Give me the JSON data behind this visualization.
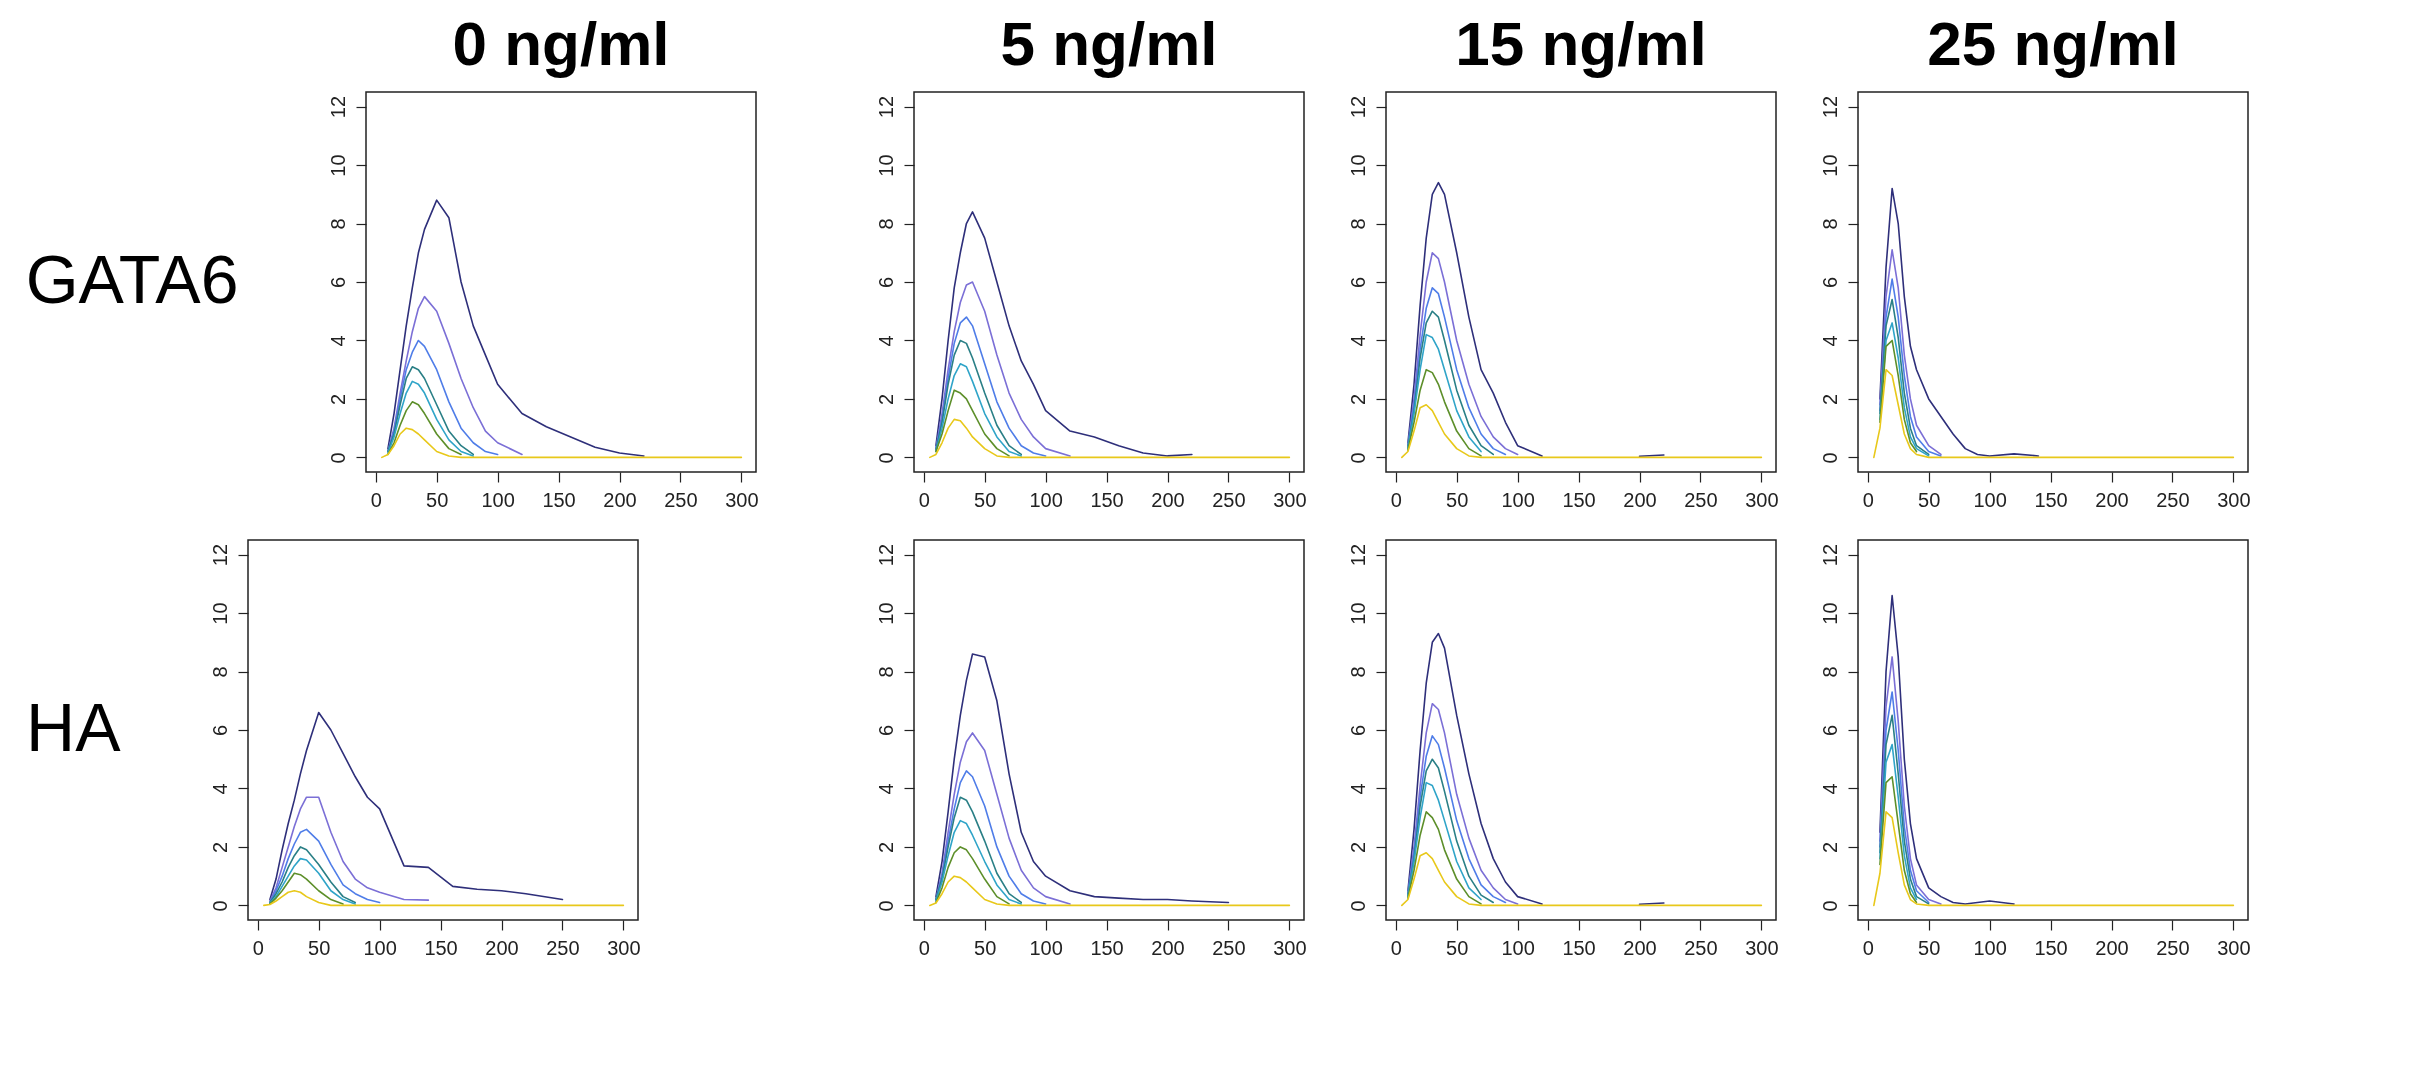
{
  "chart_data": [
    {
      "type": "line",
      "title": "0 ng/ml",
      "ylabel": "GATA6",
      "xlim": [
        -8,
        312
      ],
      "ylim": [
        -0.5,
        12.5
      ],
      "xticks": [
        0,
        50,
        100,
        150,
        200,
        250,
        300
      ],
      "yticks": [
        0,
        2,
        4,
        6,
        8,
        10,
        12
      ],
      "x": [
        5,
        10,
        15,
        20,
        25,
        30,
        35,
        40,
        50,
        60,
        70,
        80,
        90,
        100,
        120,
        140,
        160,
        180,
        200,
        220,
        250,
        300
      ],
      "series": [
        {
          "color": "#2e2f7a",
          "values": [
            null,
            0.3,
            1.5,
            3,
            4.5,
            5.8,
            7,
            7.8,
            8.8,
            8.2,
            6,
            4.5,
            3.5,
            2.5,
            1.5,
            1.05,
            0.7,
            0.35,
            0.15,
            0.05,
            null,
            null
          ]
        },
        {
          "color": "#7b6fd6",
          "values": [
            null,
            0.2,
            1,
            2.2,
            3.3,
            4.3,
            5.1,
            5.5,
            5,
            3.9,
            2.7,
            1.7,
            0.9,
            0.5,
            0.1,
            null,
            null,
            null,
            null,
            null,
            null,
            null
          ]
        },
        {
          "color": "#4f7de8",
          "values": [
            null,
            0.2,
            0.9,
            2,
            3,
            3.6,
            4,
            3.8,
            3,
            1.9,
            1,
            0.5,
            0.2,
            0.1,
            null,
            null,
            null,
            null,
            null,
            null,
            null,
            null
          ]
        },
        {
          "color": "#2a7f86",
          "values": [
            null,
            0.2,
            0.8,
            1.8,
            2.7,
            3.1,
            3,
            2.7,
            1.8,
            0.9,
            0.4,
            0.1,
            null,
            null,
            null,
            null,
            null,
            null,
            null,
            null,
            null,
            null
          ]
        },
        {
          "color": "#2fa4c8",
          "values": [
            null,
            0.15,
            0.7,
            1.5,
            2.2,
            2.6,
            2.5,
            2.2,
            1.3,
            0.6,
            0.2,
            0.05,
            null,
            null,
            null,
            null,
            null,
            null,
            null,
            null,
            null,
            null
          ]
        },
        {
          "color": "#5d8f2a",
          "values": [
            null,
            0.1,
            0.5,
            1.1,
            1.6,
            1.9,
            1.8,
            1.5,
            0.8,
            0.3,
            0.1,
            null,
            null,
            null,
            null,
            null,
            null,
            null,
            null,
            null,
            null,
            null
          ]
        },
        {
          "color": "#e8c81a",
          "values": [
            0,
            0.1,
            0.4,
            0.8,
            1,
            0.95,
            0.8,
            0.6,
            0.2,
            0.05,
            0,
            0,
            0,
            0,
            0,
            0,
            0,
            0,
            0,
            0,
            0,
            0
          ]
        }
      ]
    },
    {
      "type": "line",
      "title": "5 ng/ml",
      "xlim": [
        -8,
        312
      ],
      "ylim": [
        -0.5,
        12.5
      ],
      "xticks": [
        0,
        50,
        100,
        150,
        200,
        250,
        300
      ],
      "yticks": [
        0,
        2,
        4,
        6,
        8,
        10,
        12
      ],
      "x": [
        5,
        10,
        15,
        20,
        25,
        30,
        35,
        40,
        50,
        60,
        70,
        80,
        90,
        100,
        120,
        140,
        160,
        180,
        200,
        220,
        250,
        300
      ],
      "series": [
        {
          "color": "#2e2f7a",
          "values": [
            null,
            0.4,
            2,
            4,
            5.8,
            7,
            8,
            8.4,
            7.5,
            6,
            4.5,
            3.3,
            2.5,
            1.6,
            0.9,
            0.7,
            0.4,
            0.15,
            0.05,
            0.1,
            null,
            null
          ]
        },
        {
          "color": "#7b6fd6",
          "values": [
            null,
            0.3,
            1.5,
            3,
            4.3,
            5.3,
            5.9,
            6,
            5,
            3.5,
            2.2,
            1.3,
            0.7,
            0.3,
            0.05,
            null,
            null,
            null,
            null,
            null,
            null,
            null
          ]
        },
        {
          "color": "#4f7de8",
          "values": [
            null,
            0.3,
            1.3,
            2.7,
            3.9,
            4.6,
            4.8,
            4.5,
            3.2,
            1.9,
            1,
            0.4,
            0.15,
            0.05,
            null,
            null,
            null,
            null,
            null,
            null,
            null,
            null
          ]
        },
        {
          "color": "#2a7f86",
          "values": [
            null,
            0.25,
            1.2,
            2.5,
            3.5,
            4,
            3.9,
            3.4,
            2.2,
            1.1,
            0.4,
            0.1,
            null,
            null,
            null,
            null,
            null,
            null,
            null,
            null,
            null,
            null
          ]
        },
        {
          "color": "#2fa4c8",
          "values": [
            null,
            0.2,
            1,
            2,
            2.8,
            3.2,
            3.1,
            2.6,
            1.5,
            0.7,
            0.2,
            0.05,
            null,
            null,
            null,
            null,
            null,
            null,
            null,
            null,
            null,
            null
          ]
        },
        {
          "color": "#5d8f2a",
          "values": [
            null,
            0.2,
            0.8,
            1.6,
            2.3,
            2.2,
            2,
            1.6,
            0.8,
            0.3,
            0.05,
            null,
            null,
            null,
            null,
            null,
            null,
            null,
            null,
            null,
            null,
            null
          ]
        },
        {
          "color": "#e8c81a",
          "values": [
            0,
            0.1,
            0.5,
            1,
            1.3,
            1.25,
            1,
            0.7,
            0.3,
            0.05,
            0,
            0,
            0,
            0,
            0,
            0,
            0,
            0,
            0,
            0,
            0,
            0
          ]
        }
      ]
    },
    {
      "type": "line",
      "title": "15 ng/ml",
      "xlim": [
        -8,
        312
      ],
      "ylim": [
        -0.5,
        12.5
      ],
      "xticks": [
        0,
        50,
        100,
        150,
        200,
        250,
        300
      ],
      "yticks": [
        0,
        2,
        4,
        6,
        8,
        10,
        12
      ],
      "x": [
        5,
        10,
        15,
        20,
        25,
        30,
        35,
        40,
        50,
        60,
        70,
        80,
        90,
        100,
        120,
        140,
        160,
        180,
        200,
        220,
        250,
        300
      ],
      "series": [
        {
          "color": "#2e2f7a",
          "values": [
            null,
            0.5,
            2.5,
            5.2,
            7.5,
            9,
            9.4,
            9,
            7,
            4.8,
            3,
            2.2,
            1.2,
            0.4,
            0.05,
            null,
            null,
            null,
            0.04,
            0.08,
            null,
            null
          ]
        },
        {
          "color": "#7b6fd6",
          "values": [
            null,
            0.4,
            2,
            4.2,
            6,
            7,
            6.8,
            6,
            4,
            2.5,
            1.4,
            0.7,
            0.3,
            0.1,
            null,
            null,
            null,
            null,
            null,
            null,
            null,
            null
          ]
        },
        {
          "color": "#4f7de8",
          "values": [
            null,
            0.4,
            1.8,
            3.7,
            5.1,
            5.8,
            5.6,
            4.8,
            3,
            1.7,
            0.8,
            0.3,
            0.1,
            null,
            null,
            null,
            null,
            null,
            null,
            null,
            null,
            null
          ]
        },
        {
          "color": "#2a7f86",
          "values": [
            null,
            0.35,
            1.6,
            3.4,
            4.6,
            5,
            4.8,
            4,
            2.3,
            1.1,
            0.4,
            0.1,
            null,
            null,
            null,
            null,
            null,
            null,
            null,
            null,
            null,
            null
          ]
        },
        {
          "color": "#2fa4c8",
          "values": [
            null,
            0.3,
            1.5,
            3,
            4.2,
            4.1,
            3.7,
            3,
            1.6,
            0.7,
            0.2,
            null,
            null,
            null,
            null,
            null,
            null,
            null,
            null,
            null,
            null,
            null
          ]
        },
        {
          "color": "#5d8f2a",
          "values": [
            null,
            0.25,
            1.2,
            2.3,
            3,
            2.9,
            2.5,
            1.9,
            0.9,
            0.3,
            0.05,
            null,
            null,
            null,
            null,
            null,
            null,
            null,
            null,
            null,
            null,
            null
          ]
        },
        {
          "color": "#e8c81a",
          "values": [
            0,
            0.2,
            0.9,
            1.7,
            1.8,
            1.6,
            1.2,
            0.8,
            0.3,
            0.05,
            0,
            0,
            0,
            0,
            0,
            0,
            0,
            0,
            0,
            0,
            0,
            0
          ]
        }
      ]
    },
    {
      "type": "line",
      "title": "25 ng/ml",
      "xlim": [
        -8,
        312
      ],
      "ylim": [
        -0.5,
        12.5
      ],
      "xticks": [
        0,
        50,
        100,
        150,
        200,
        250,
        300
      ],
      "yticks": [
        0,
        2,
        4,
        6,
        8,
        10,
        12
      ],
      "x": [
        5,
        10,
        15,
        20,
        25,
        30,
        35,
        40,
        50,
        60,
        70,
        80,
        90,
        100,
        120,
        140,
        160,
        180,
        200,
        220,
        250,
        300
      ],
      "series": [
        {
          "color": "#2e2f7a",
          "values": [
            null,
            2,
            6.5,
            9.2,
            8,
            5.5,
            3.8,
            3,
            2,
            1.4,
            0.8,
            0.3,
            0.1,
            0.05,
            0.12,
            0.05,
            null,
            null,
            null,
            null,
            null,
            null
          ]
        },
        {
          "color": "#7b6fd6",
          "values": [
            null,
            1.8,
            5.5,
            7.1,
            5.8,
            3.5,
            2,
            1.1,
            0.4,
            0.1,
            null,
            null,
            null,
            null,
            null,
            null,
            null,
            null,
            null,
            null,
            null,
            null
          ]
        },
        {
          "color": "#4f7de8",
          "values": [
            null,
            1.6,
            4.8,
            6.1,
            4.8,
            2.8,
            1.4,
            0.7,
            0.2,
            0.05,
            null,
            null,
            null,
            null,
            null,
            null,
            null,
            null,
            null,
            null,
            null,
            null
          ]
        },
        {
          "color": "#2a7f86",
          "values": [
            null,
            1.5,
            4.5,
            5.4,
            4.1,
            2.2,
            1,
            0.4,
            0.1,
            null,
            null,
            null,
            null,
            null,
            null,
            null,
            null,
            null,
            null,
            null,
            null,
            null
          ]
        },
        {
          "color": "#2fa4c8",
          "values": [
            null,
            1.3,
            4,
            4.6,
            3.4,
            1.7,
            0.7,
            0.3,
            0.05,
            null,
            null,
            null,
            null,
            null,
            null,
            null,
            null,
            null,
            null,
            null,
            null,
            null
          ]
        },
        {
          "color": "#5d8f2a",
          "values": [
            null,
            1.2,
            3.8,
            4,
            2.8,
            1.3,
            0.5,
            0.2,
            null,
            null,
            null,
            null,
            null,
            null,
            null,
            null,
            null,
            null,
            null,
            null,
            null,
            null
          ]
        },
        {
          "color": "#e8c81a",
          "values": [
            0,
            1,
            3,
            2.8,
            1.8,
            0.8,
            0.3,
            0.1,
            0,
            0,
            0,
            0,
            0,
            0,
            0,
            0,
            0,
            0,
            0,
            0,
            0,
            0
          ]
        }
      ]
    },
    {
      "type": "line",
      "ylabel": "HA",
      "xlim": [
        -8,
        312
      ],
      "ylim": [
        -0.5,
        12.5
      ],
      "xticks": [
        0,
        50,
        100,
        150,
        200,
        250,
        300
      ],
      "yticks": [
        0,
        2,
        4,
        6,
        8,
        10,
        12
      ],
      "x": [
        5,
        10,
        15,
        20,
        25,
        30,
        35,
        40,
        50,
        60,
        70,
        80,
        90,
        100,
        120,
        140,
        160,
        180,
        200,
        220,
        250,
        300
      ],
      "series": [
        {
          "color": "#2e2f7a",
          "values": [
            null,
            0.2,
            0.9,
            1.9,
            2.8,
            3.6,
            4.5,
            5.3,
            6.6,
            6,
            5.2,
            4.4,
            3.7,
            3.3,
            1.35,
            1.3,
            0.65,
            0.55,
            0.5,
            0.4,
            0.2,
            null
          ]
        },
        {
          "color": "#7b6fd6",
          "values": [
            null,
            0.15,
            0.6,
            1.3,
            2,
            2.7,
            3.3,
            3.7,
            3.7,
            2.5,
            1.5,
            0.9,
            0.6,
            0.45,
            0.2,
            0.18,
            null,
            null,
            null,
            null,
            null,
            null
          ]
        },
        {
          "color": "#4f7de8",
          "values": [
            null,
            0.1,
            0.5,
            1,
            1.6,
            2.1,
            2.5,
            2.6,
            2.2,
            1.4,
            0.7,
            0.4,
            0.2,
            0.1,
            null,
            null,
            null,
            null,
            null,
            null,
            null,
            null
          ]
        },
        {
          "color": "#2a7f86",
          "values": [
            null,
            0.1,
            0.4,
            0.8,
            1.3,
            1.7,
            2,
            1.9,
            1.4,
            0.8,
            0.3,
            0.1,
            null,
            null,
            null,
            null,
            null,
            null,
            null,
            null,
            null,
            null
          ]
        },
        {
          "color": "#2fa4c8",
          "values": [
            null,
            0.08,
            0.3,
            0.65,
            1,
            1.35,
            1.6,
            1.55,
            1.1,
            0.5,
            0.2,
            0.05,
            null,
            null,
            null,
            null,
            null,
            null,
            null,
            null,
            null,
            null
          ]
        },
        {
          "color": "#5d8f2a",
          "values": [
            null,
            0.05,
            0.25,
            0.5,
            0.8,
            1.1,
            1.05,
            0.9,
            0.5,
            0.2,
            0.05,
            null,
            null,
            null,
            null,
            null,
            null,
            null,
            null,
            null,
            null,
            null
          ]
        },
        {
          "color": "#e8c81a",
          "values": [
            0,
            0.03,
            0.15,
            0.3,
            0.45,
            0.5,
            0.45,
            0.3,
            0.1,
            0,
            0,
            0,
            0,
            0,
            0,
            0,
            0,
            0,
            0,
            0,
            0,
            0
          ]
        }
      ]
    },
    {
      "type": "line",
      "xlim": [
        -8,
        312
      ],
      "ylim": [
        -0.5,
        12.5
      ],
      "xticks": [
        0,
        50,
        100,
        150,
        200,
        250,
        300
      ],
      "yticks": [
        0,
        2,
        4,
        6,
        8,
        10,
        12
      ],
      "x": [
        5,
        10,
        15,
        20,
        25,
        30,
        35,
        40,
        50,
        60,
        70,
        80,
        90,
        100,
        120,
        140,
        160,
        180,
        200,
        220,
        250,
        300
      ],
      "series": [
        {
          "color": "#2e2f7a",
          "values": [
            null,
            0.3,
            1.5,
            3.2,
            5,
            6.5,
            7.7,
            8.6,
            8.5,
            7,
            4.5,
            2.5,
            1.5,
            1,
            0.5,
            0.3,
            0.25,
            0.2,
            0.2,
            0.15,
            0.1,
            null
          ]
        },
        {
          "color": "#7b6fd6",
          "values": [
            null,
            0.2,
            1.1,
            2.5,
            3.8,
            4.9,
            5.6,
            5.9,
            5.3,
            3.8,
            2.3,
            1.2,
            0.6,
            0.3,
            0.05,
            null,
            null,
            null,
            null,
            null,
            null,
            null
          ]
        },
        {
          "color": "#4f7de8",
          "values": [
            null,
            0.2,
            1,
            2.2,
            3.3,
            4.2,
            4.6,
            4.4,
            3.4,
            2,
            1,
            0.4,
            0.15,
            0.05,
            null,
            null,
            null,
            null,
            null,
            null,
            null,
            null
          ]
        },
        {
          "color": "#2a7f86",
          "values": [
            null,
            0.2,
            0.9,
            2,
            3,
            3.7,
            3.6,
            3.2,
            2.2,
            1.1,
            0.4,
            0.1,
            null,
            null,
            null,
            null,
            null,
            null,
            null,
            null,
            null,
            null
          ]
        },
        {
          "color": "#2fa4c8",
          "values": [
            null,
            0.15,
            0.8,
            1.7,
            2.5,
            2.9,
            2.8,
            2.4,
            1.5,
            0.7,
            0.2,
            0.05,
            null,
            null,
            null,
            null,
            null,
            null,
            null,
            null,
            null,
            null
          ]
        },
        {
          "color": "#5d8f2a",
          "values": [
            null,
            0.1,
            0.6,
            1.3,
            1.8,
            2,
            1.9,
            1.6,
            0.9,
            0.3,
            0.05,
            null,
            null,
            null,
            null,
            null,
            null,
            null,
            null,
            null,
            null,
            null
          ]
        },
        {
          "color": "#e8c81a",
          "values": [
            0,
            0.08,
            0.4,
            0.8,
            1,
            0.95,
            0.8,
            0.6,
            0.2,
            0.05,
            0,
            0,
            0,
            0,
            0,
            0,
            0,
            0,
            0,
            0,
            0,
            0
          ]
        }
      ]
    },
    {
      "type": "line",
      "xlim": [
        -8,
        312
      ],
      "ylim": [
        -0.5,
        12.5
      ],
      "xticks": [
        0,
        50,
        100,
        150,
        200,
        250,
        300
      ],
      "yticks": [
        0,
        2,
        4,
        6,
        8,
        10,
        12
      ],
      "x": [
        5,
        10,
        15,
        20,
        25,
        30,
        35,
        40,
        50,
        60,
        70,
        80,
        90,
        100,
        120,
        140,
        160,
        180,
        200,
        220,
        250,
        300
      ],
      "series": [
        {
          "color": "#2e2f7a",
          "values": [
            null,
            0.5,
            2.6,
            5.3,
            7.6,
            9,
            9.3,
            8.8,
            6.5,
            4.5,
            2.8,
            1.6,
            0.8,
            0.3,
            0.05,
            null,
            null,
            null,
            0.04,
            0.08,
            null,
            null
          ]
        },
        {
          "color": "#7b6fd6",
          "values": [
            null,
            0.4,
            2,
            4.1,
            5.9,
            6.9,
            6.7,
            5.9,
            3.8,
            2.3,
            1.2,
            0.6,
            0.2,
            0.05,
            null,
            null,
            null,
            null,
            null,
            null,
            null,
            null
          ]
        },
        {
          "color": "#4f7de8",
          "values": [
            null,
            0.4,
            1.8,
            3.7,
            5.1,
            5.8,
            5.5,
            4.7,
            2.9,
            1.6,
            0.7,
            0.3,
            0.1,
            null,
            null,
            null,
            null,
            null,
            null,
            null,
            null,
            null
          ]
        },
        {
          "color": "#2a7f86",
          "values": [
            null,
            0.35,
            1.6,
            3.4,
            4.6,
            5,
            4.7,
            3.9,
            2.2,
            1,
            0.35,
            0.1,
            null,
            null,
            null,
            null,
            null,
            null,
            null,
            null,
            null,
            null
          ]
        },
        {
          "color": "#2fa4c8",
          "values": [
            null,
            0.3,
            1.5,
            3,
            4.2,
            4.1,
            3.6,
            2.9,
            1.5,
            0.6,
            0.2,
            null,
            null,
            null,
            null,
            null,
            null,
            null,
            null,
            null,
            null,
            null
          ]
        },
        {
          "color": "#5d8f2a",
          "values": [
            null,
            0.25,
            1.2,
            2.4,
            3.2,
            3,
            2.6,
            1.9,
            0.9,
            0.3,
            0.05,
            null,
            null,
            null,
            null,
            null,
            null,
            null,
            null,
            null,
            null,
            null
          ]
        },
        {
          "color": "#e8c81a",
          "values": [
            0,
            0.2,
            0.9,
            1.7,
            1.8,
            1.6,
            1.2,
            0.8,
            0.3,
            0.05,
            0,
            0,
            0,
            0,
            0,
            0,
            0,
            0,
            0,
            0,
            0,
            0
          ]
        }
      ]
    },
    {
      "type": "line",
      "xlim": [
        -8,
        312
      ],
      "ylim": [
        -0.5,
        12.5
      ],
      "xticks": [
        0,
        50,
        100,
        150,
        200,
        250,
        300
      ],
      "yticks": [
        0,
        2,
        4,
        6,
        8,
        10,
        12
      ],
      "x": [
        5,
        10,
        15,
        20,
        25,
        30,
        35,
        40,
        50,
        60,
        70,
        80,
        90,
        100,
        120,
        140,
        160,
        180,
        200,
        220,
        250,
        300
      ],
      "series": [
        {
          "color": "#2e2f7a",
          "values": [
            null,
            2.5,
            8,
            10.6,
            8.5,
            5,
            2.8,
            1.6,
            0.6,
            0.3,
            0.1,
            0.05,
            0.1,
            0.15,
            0.05,
            null,
            null,
            null,
            null,
            null,
            null,
            null
          ]
        },
        {
          "color": "#7b6fd6",
          "values": [
            null,
            2.2,
            6.8,
            8.5,
            6.3,
            3.4,
            1.6,
            0.7,
            0.2,
            0.05,
            null,
            null,
            null,
            null,
            null,
            null,
            null,
            null,
            null,
            null,
            null,
            null
          ]
        },
        {
          "color": "#4f7de8",
          "values": [
            null,
            2,
            6,
            7.3,
            5.3,
            2.7,
            1.2,
            0.5,
            0.1,
            null,
            null,
            null,
            null,
            null,
            null,
            null,
            null,
            null,
            null,
            null,
            null,
            null
          ]
        },
        {
          "color": "#2a7f86",
          "values": [
            null,
            1.8,
            5.5,
            6.5,
            4.5,
            2.2,
            0.9,
            0.3,
            0.05,
            null,
            null,
            null,
            null,
            null,
            null,
            null,
            null,
            null,
            null,
            null,
            null,
            null
          ]
        },
        {
          "color": "#2fa4c8",
          "values": [
            null,
            1.6,
            4.9,
            5.5,
            3.7,
            1.7,
            0.6,
            0.2,
            null,
            null,
            null,
            null,
            null,
            null,
            null,
            null,
            null,
            null,
            null,
            null,
            null,
            null
          ]
        },
        {
          "color": "#5d8f2a",
          "values": [
            null,
            1.4,
            4.2,
            4.4,
            2.8,
            1.2,
            0.4,
            0.1,
            null,
            null,
            null,
            null,
            null,
            null,
            null,
            null,
            null,
            null,
            null,
            null,
            null,
            null
          ]
        },
        {
          "color": "#e8c81a",
          "values": [
            0,
            1.1,
            3.2,
            3,
            1.8,
            0.7,
            0.2,
            0.05,
            0,
            0,
            0,
            0,
            0,
            0,
            0,
            0,
            0,
            0,
            0,
            0,
            0,
            0
          ]
        }
      ]
    }
  ]
}
